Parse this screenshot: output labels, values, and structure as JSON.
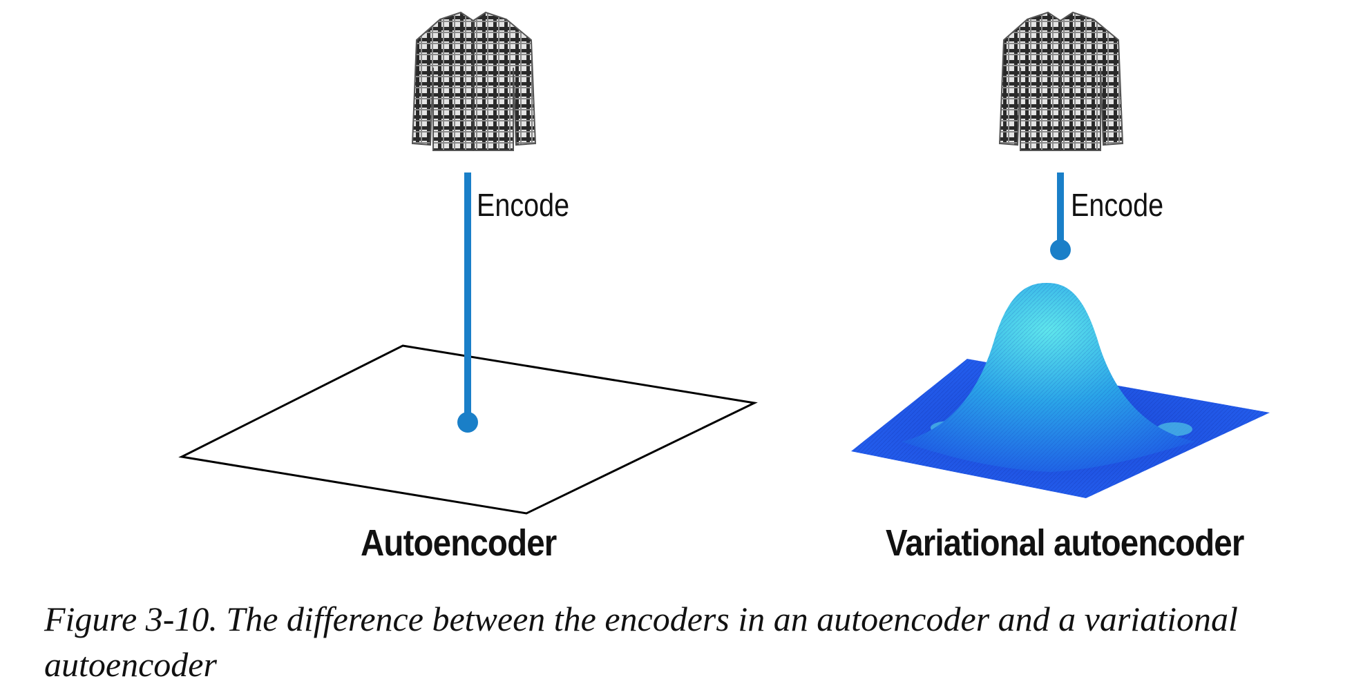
{
  "left_panel": {
    "encode_label": "Encode",
    "title": "Autoencoder"
  },
  "right_panel": {
    "encode_label": "Encode",
    "title": "Variational autoencoder"
  },
  "caption": {
    "figure_label": "Figure 3-10.",
    "text": "The difference between the encoders in an autoencoder and a variational autoencoder"
  },
  "colors": {
    "encoder_line": "#1a7fc8",
    "surface_blue": "#1f56e8",
    "surface_cyan": "#49d8e6",
    "plane_outline": "#000000"
  },
  "icons": [
    "plaid-shirt-icon",
    "plaid-shirt-icon"
  ]
}
